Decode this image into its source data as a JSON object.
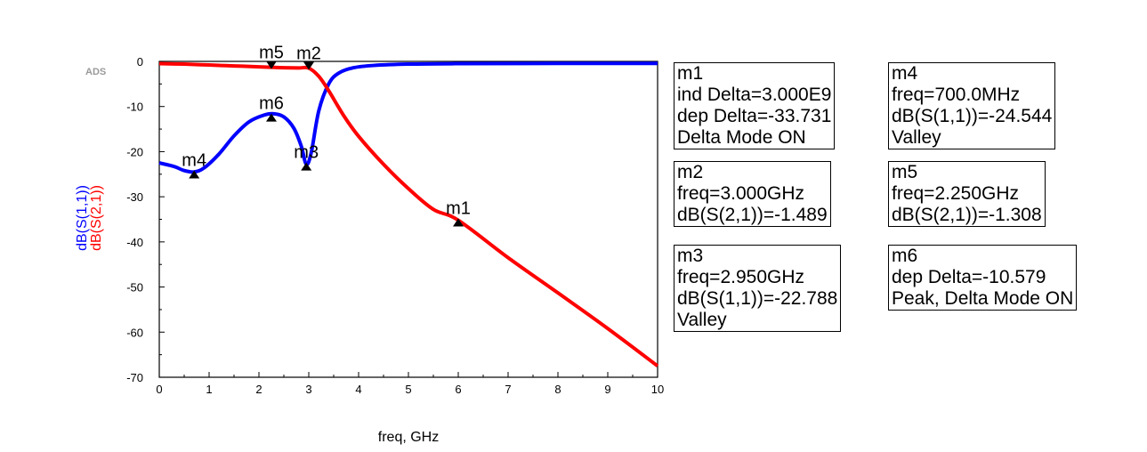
{
  "app_label": "ADS",
  "chart_data": {
    "type": "line",
    "xlabel": "freq, GHz",
    "xlim": [
      0,
      10
    ],
    "ylim": [
      -70,
      0
    ],
    "xticks": [
      "0",
      "1",
      "2",
      "3",
      "4",
      "5",
      "6",
      "7",
      "8",
      "9",
      "10"
    ],
    "yticks": [
      "0",
      "-10",
      "-20",
      "-30",
      "-40",
      "-50",
      "-60",
      "-70"
    ],
    "ylabels": [
      {
        "text": "dB(S(1,1))",
        "color": "#0000ff"
      },
      {
        "text": "dB(S(2,1))",
        "color": "#ff0000"
      }
    ],
    "series": [
      {
        "name": "dB(S(1,1))",
        "color": "#0000ff",
        "x": [
          0,
          0.3,
          0.5,
          0.7,
          0.9,
          1.2,
          1.5,
          1.8,
          2.1,
          2.3,
          2.5,
          2.7,
          2.85,
          2.95,
          3.05,
          3.2,
          3.4,
          3.6,
          3.9,
          4.3,
          5,
          6,
          8,
          10
        ],
        "y": [
          -22.5,
          -23.3,
          -24.2,
          -24.5,
          -23.6,
          -20.5,
          -16.5,
          -13.4,
          -11.9,
          -11.6,
          -12.3,
          -14.8,
          -18.8,
          -22.8,
          -20.2,
          -11,
          -5,
          -2.6,
          -1.4,
          -0.9,
          -0.6,
          -0.5,
          -0.45,
          -0.45
        ]
      },
      {
        "name": "dB(S(2,1))",
        "color": "#ff0000",
        "x": [
          0,
          0.5,
          1,
          1.5,
          2,
          2.25,
          2.5,
          2.8,
          3,
          3.2,
          3.4,
          3.7,
          4,
          4.5,
          5,
          5.5,
          6,
          7,
          8,
          9,
          10
        ],
        "y": [
          -0.5,
          -0.6,
          -0.8,
          -1.0,
          -1.2,
          -1.308,
          -1.4,
          -1.45,
          -1.489,
          -3.3,
          -6.5,
          -12,
          -16.6,
          -22.8,
          -28.2,
          -32.8,
          -35.2,
          -43.5,
          -51.3,
          -59.2,
          -67.5
        ]
      }
    ],
    "markers": [
      {
        "name": "m1",
        "x": 6,
        "y": -35.2,
        "type": "up"
      },
      {
        "name": "m2",
        "x": 3,
        "y": -1.489,
        "type": "down"
      },
      {
        "name": "m3",
        "x": 2.95,
        "y": -22.788,
        "type": "up"
      },
      {
        "name": "m4",
        "x": 0.7,
        "y": -24.544,
        "type": "up"
      },
      {
        "name": "m5",
        "x": 2.25,
        "y": -1.308,
        "type": "down"
      },
      {
        "name": "m6",
        "x": 2.25,
        "y": -11.96,
        "type": "up"
      }
    ]
  },
  "marker_boxes": {
    "m1": [
      "m1",
      "ind Delta=3.000E9",
      "dep Delta=-33.731",
      "Delta Mode ON"
    ],
    "m2": [
      "m2",
      "freq=3.000GHz",
      "dB(S(2,1))=-1.489"
    ],
    "m3": [
      "m3",
      "freq=2.950GHz",
      "dB(S(1,1))=-22.788",
      "Valley"
    ],
    "m4": [
      "m4",
      "freq=700.0MHz",
      "dB(S(1,1))=-24.544",
      "Valley"
    ],
    "m5": [
      "m5",
      "freq=2.250GHz",
      "dB(S(2,1))=-1.308"
    ],
    "m6": [
      "m6",
      "dep Delta=-10.579",
      "Peak, Delta Mode ON"
    ]
  }
}
